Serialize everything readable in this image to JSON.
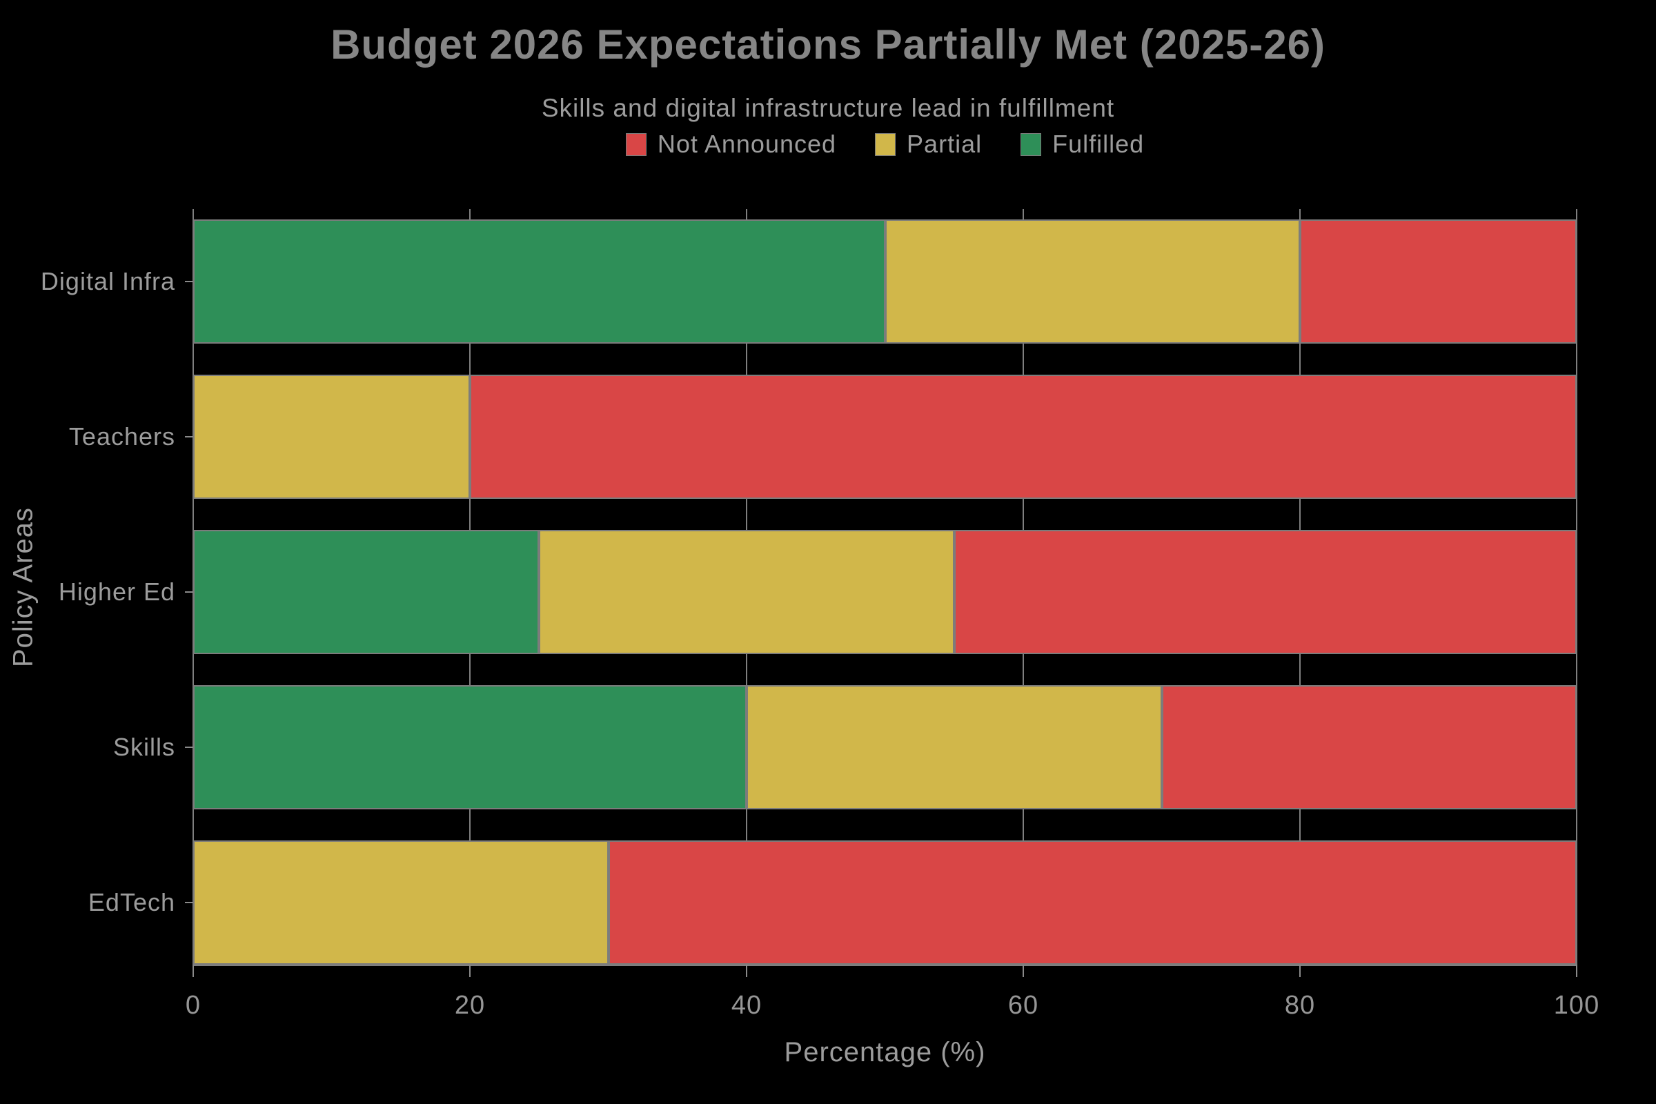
{
  "title": "Budget 2026 Expectations Partially Met (2025-26)",
  "subtitle": "Skills and digital infrastructure lead in fulfillment",
  "colors": {
    "background": "#000000",
    "fulfilled": "#2e8f58",
    "partial": "#d1b74a",
    "not_announced": "#d94646",
    "grid": "#7f7f7f",
    "bar_border": "#7c7c7c",
    "title_text": "#868686",
    "label_text": "#9c9c9c"
  },
  "legend": [
    {
      "label": "Not Announced",
      "color_key": "not_announced"
    },
    {
      "label": "Partial",
      "color_key": "partial"
    },
    {
      "label": "Fulfilled",
      "color_key": "fulfilled"
    }
  ],
  "chart_data": {
    "type": "bar",
    "orientation": "horizontal",
    "stacked": true,
    "title": "Budget 2026 Expectations Partially Met (2025-26)",
    "subtitle": "Skills and digital infrastructure lead in fulfillment",
    "categories": [
      "Digital Infra",
      "Teachers",
      "Higher Ed",
      "Skills",
      "EdTech"
    ],
    "series": [
      {
        "name": "Fulfilled",
        "color_key": "fulfilled",
        "values": [
          50,
          0,
          25,
          40,
          0
        ]
      },
      {
        "name": "Partial",
        "color_key": "partial",
        "values": [
          30,
          20,
          30,
          30,
          30
        ]
      },
      {
        "name": "Not Announced",
        "color_key": "not_announced",
        "values": [
          20,
          80,
          45,
          30,
          70
        ]
      }
    ],
    "xlabel": "Percentage (%)",
    "ylabel": "Policy Areas",
    "xlim": [
      0,
      100
    ],
    "xticks": [
      0,
      20,
      40,
      60,
      80,
      100
    ],
    "grid": true,
    "legend_position": "top"
  }
}
